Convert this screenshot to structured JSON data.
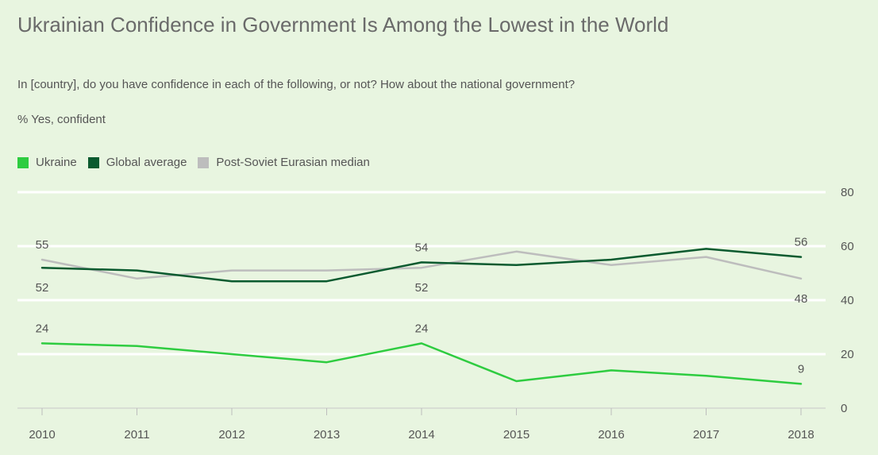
{
  "title": "Ukrainian Confidence in Government Is Among the Lowest in the World",
  "subtitle": "In [country], do you have confidence in each of the following, or not? How about the national government?",
  "unit_label": "% Yes, confident",
  "legend": [
    {
      "name": "Ukraine",
      "color": "#2ecc40"
    },
    {
      "name": "Global average",
      "color": "#0b5a2f"
    },
    {
      "name": "Post-Soviet Eurasian median",
      "color": "#bdbdbd"
    }
  ],
  "chart_data": {
    "type": "line",
    "x": [
      "2010",
      "2011",
      "2012",
      "2013",
      "2014",
      "2015",
      "2016",
      "2017",
      "2018"
    ],
    "ylim": [
      0,
      80
    ],
    "yticks": [
      "0",
      "20",
      "40",
      "60",
      "80"
    ],
    "grid": true,
    "legend_position": "top-left",
    "series": [
      {
        "name": "Ukraine",
        "color": "#2ecc40",
        "values": [
          24,
          23,
          20,
          17,
          24,
          10,
          14,
          12,
          9
        ]
      },
      {
        "name": "Global average",
        "color": "#0b5a2f",
        "values": [
          52,
          51,
          47,
          47,
          54,
          53,
          55,
          59,
          56
        ]
      },
      {
        "name": "Post-Soviet Eurasian median",
        "color": "#bdbdbd",
        "values": [
          55,
          48,
          51,
          51,
          52,
          58,
          53,
          56,
          48
        ]
      }
    ],
    "data_labels": [
      {
        "series": "Post-Soviet Eurasian median",
        "x": "2010",
        "text": "55",
        "place": "above"
      },
      {
        "series": "Global average",
        "x": "2010",
        "text": "52",
        "place": "below"
      },
      {
        "series": "Ukraine",
        "x": "2010",
        "text": "24",
        "place": "above"
      },
      {
        "series": "Global average",
        "x": "2014",
        "text": "54",
        "place": "above"
      },
      {
        "series": "Post-Soviet Eurasian median",
        "x": "2014",
        "text": "52",
        "place": "below"
      },
      {
        "series": "Ukraine",
        "x": "2014",
        "text": "24",
        "place": "above"
      },
      {
        "series": "Global average",
        "x": "2018",
        "text": "56",
        "place": "above"
      },
      {
        "series": "Post-Soviet Eurasian median",
        "x": "2018",
        "text": "48",
        "place": "below"
      },
      {
        "series": "Ukraine",
        "x": "2018",
        "text": "9",
        "place": "above"
      }
    ]
  }
}
